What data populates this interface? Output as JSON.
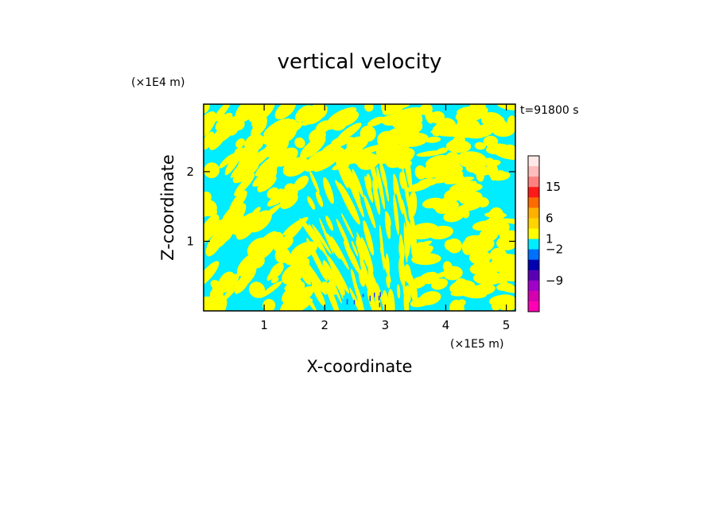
{
  "chart_data": {
    "type": "heatmap",
    "title": "vertical velocity",
    "xlabel": "X-coordinate",
    "ylabel": "Z-coordinate",
    "x_unit": "(×1E5 m)",
    "y_unit": "(×1E4 m)",
    "time_label": "t=91800 s",
    "xlim": [
      0,
      5.15
    ],
    "ylim": [
      0,
      2.97
    ],
    "x_ticks": [
      1,
      2,
      3,
      4,
      5
    ],
    "y_ticks": [
      1,
      2
    ],
    "colorbar": {
      "label_values": [
        15,
        6,
        1,
        -2,
        -9
      ],
      "bands": [
        {
          "color": "#ffe8e8"
        },
        {
          "color": "#ffbcbc"
        },
        {
          "color": "#ff8080"
        },
        {
          "color": "#ff1a1a"
        },
        {
          "color": "#ff6a00"
        },
        {
          "color": "#ffb000"
        },
        {
          "color": "#ffd400"
        },
        {
          "color": "#ffff00"
        },
        {
          "color": "#00ecff"
        },
        {
          "color": "#0070ff"
        },
        {
          "color": "#0000b0"
        },
        {
          "color": "#5a00b4"
        },
        {
          "color": "#a000c8"
        },
        {
          "color": "#d400b0"
        },
        {
          "color": "#ff00b4"
        }
      ]
    },
    "field_colors": {
      "positive": "#ffff00",
      "negative": "#00ecff"
    }
  }
}
